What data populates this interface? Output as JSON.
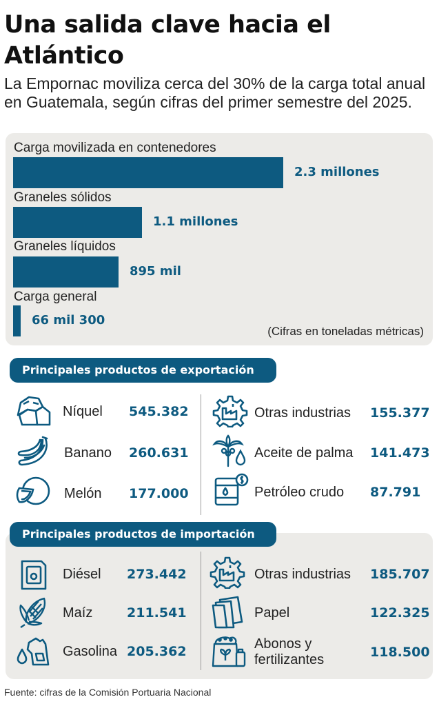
{
  "title": "Una salida clave hacia el Atlántico",
  "subtitle": "La Empornac moviliza cerca del 30% de la carga total anual en Guatemala, según cifras del primer semestre del 2025.",
  "chart_data": {
    "type": "bar",
    "orientation": "horizontal",
    "categories": [
      "Carga movilizada en contenedores",
      "Graneles sólidos",
      "Graneles líquidos",
      "Carga general"
    ],
    "values": [
      2300000,
      1100000,
      895000,
      66300
    ],
    "value_labels": [
      "2.3 millones",
      "1.1 millones",
      "895 mil",
      "66 mil 300"
    ],
    "units_note": "(Cifras en toneladas métricas)",
    "color": "#0d5a80"
  },
  "exports": {
    "heading": "Principales productos de exportación",
    "left": [
      {
        "name": "Níquel",
        "value": "545.382",
        "icon": "nickel-rocks-icon"
      },
      {
        "name": "Banano",
        "value": "260.631",
        "icon": "banana-icon"
      },
      {
        "name": "Melón",
        "value": "177.000",
        "icon": "melon-icon"
      }
    ],
    "right": [
      {
        "name": "Otras industrias",
        "value": "155.377",
        "icon": "industry-gear-icon"
      },
      {
        "name": "Aceite de palma",
        "value": "141.473",
        "icon": "palm-oil-icon"
      },
      {
        "name": "Petróleo crudo",
        "value": "87.791",
        "icon": "oil-barrel-icon"
      }
    ]
  },
  "imports": {
    "heading": "Principales productos de importación",
    "left": [
      {
        "name": "Diésel",
        "value": "273.442",
        "icon": "fuel-can-icon"
      },
      {
        "name": "Maíz",
        "value": "211.541",
        "icon": "corn-icon"
      },
      {
        "name": "Gasolina",
        "value": "205.362",
        "icon": "fuel-nozzle-icon"
      }
    ],
    "right": [
      {
        "name": "Otras industrias",
        "value": "185.707",
        "icon": "industry-gear-icon"
      },
      {
        "name": "Papel",
        "value": "122.325",
        "icon": "paper-icon"
      },
      {
        "name": "Abonos y fertilizantes",
        "value": "118.500",
        "icon": "fertilizer-bag-icon"
      }
    ]
  },
  "source": "Fuente: cifras de la Comisión Portuaria Nacional",
  "colors": {
    "accent": "#0d5a80",
    "panel": "#ecebe8"
  }
}
